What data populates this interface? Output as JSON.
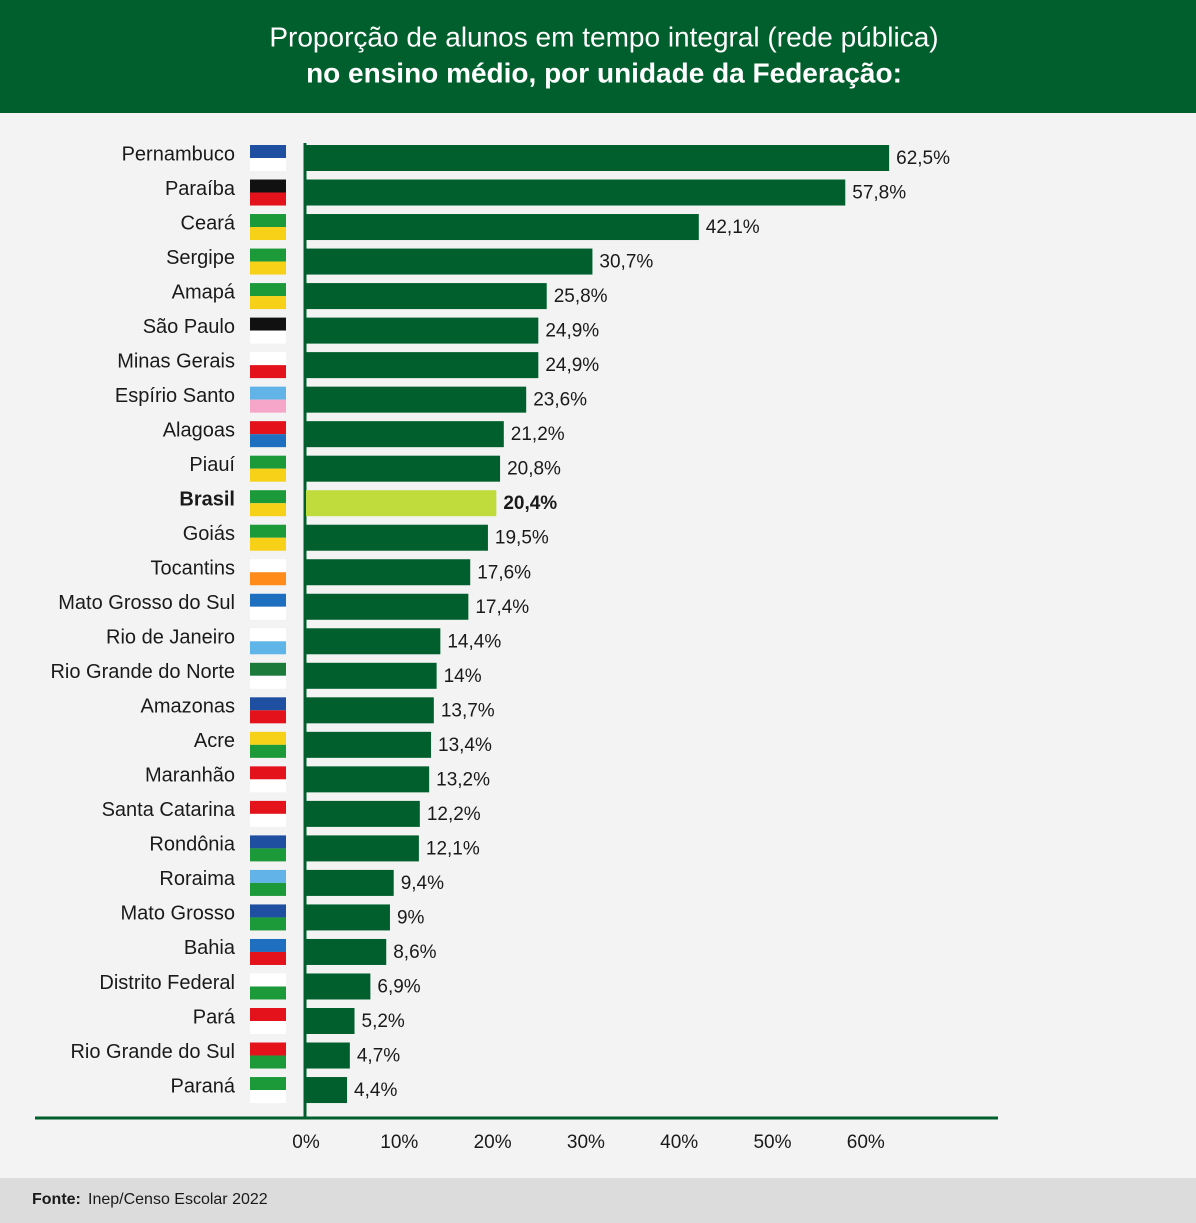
{
  "chart_data": {
    "type": "barh",
    "title": "Proporção de alunos em tempo integral (rede pública)",
    "subtitle": "no ensino médio, por unidade da Federação:",
    "categories": [
      "Pernambuco",
      "Paraíba",
      "Ceará",
      "Sergipe",
      "Amapá",
      "São Paulo",
      "Minas Gerais",
      "Espírio Santo",
      "Alagoas",
      "Piauí",
      "Brasil",
      "Goiás",
      "Tocantins",
      "Mato Grosso do Sul",
      "Rio de Janeiro",
      "Rio Grande do Norte",
      "Amazonas",
      "Acre",
      "Maranhão",
      "Santa Catarina",
      "Rondônia",
      "Roraima",
      "Mato Grosso",
      "Bahia",
      "Distrito Federal",
      "Pará",
      "Rio Grande do Sul",
      "Paraná"
    ],
    "values": [
      62.5,
      57.8,
      42.1,
      30.7,
      25.8,
      24.9,
      24.9,
      23.6,
      21.2,
      20.8,
      20.4,
      19.5,
      17.6,
      17.4,
      14.4,
      14,
      13.7,
      13.4,
      13.2,
      12.2,
      12.1,
      9.4,
      9,
      8.6,
      6.9,
      5.2,
      4.7,
      4.4
    ],
    "value_labels": [
      "62,5%",
      "57,8%",
      "42,1%",
      "30,7%",
      "25,8%",
      "24,9%",
      "24,9%",
      "23,6%",
      "21,2%",
      "20,8%",
      "20,4%",
      "19,5%",
      "17,6%",
      "17,4%",
      "14,4%",
      "14%",
      "13,7%",
      "13,4%",
      "13,2%",
      "12,2%",
      "12,1%",
      "9,4%",
      "9%",
      "8,6%",
      "6,9%",
      "5,2%",
      "4,7%",
      "4,4%"
    ],
    "color": "#005f2c",
    "highlight_color": "#bfdc3c",
    "highlight_index": 10,
    "xlim": [
      0,
      74
    ],
    "xticks": [
      {
        "value": 0,
        "label": "0%"
      },
      {
        "value": 10,
        "label": "10%"
      },
      {
        "value": 20,
        "label": "20%"
      },
      {
        "value": 30,
        "label": "30%"
      },
      {
        "value": 40,
        "label": "40%"
      },
      {
        "value": 50,
        "label": "50%"
      },
      {
        "value": 60,
        "label": "60%"
      }
    ],
    "source_label": "Fonte:",
    "source": "Inep/Censo Escolar 2022"
  }
}
